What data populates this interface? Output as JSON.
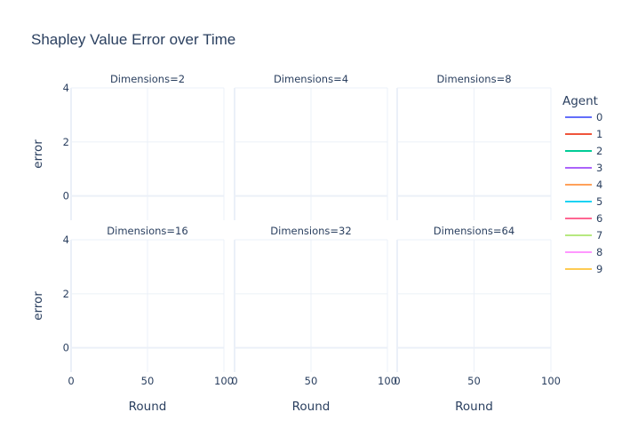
{
  "chart_data": {
    "type": "line",
    "title": "Shapley Value Error over Time",
    "xlabel": "Round",
    "ylabel": "error",
    "xlim": [
      0,
      100
    ],
    "ylim": [
      -0.9,
      4
    ],
    "xticks": [
      0,
      50,
      100
    ],
    "yticks": [
      0,
      2,
      4
    ],
    "grid": true,
    "legend_title": "Agent",
    "legend_position": "right",
    "panels": [
      "Dimensions=2",
      "Dimensions=4",
      "Dimensions=8",
      "Dimensions=16",
      "Dimensions=32",
      "Dimensions=64"
    ],
    "series": [
      {
        "name": "0",
        "color": "#636efa"
      },
      {
        "name": "1",
        "color": "#EF553B"
      },
      {
        "name": "2",
        "color": "#00cc96"
      },
      {
        "name": "3",
        "color": "#ab63fa"
      },
      {
        "name": "4",
        "color": "#FFA15A"
      },
      {
        "name": "5",
        "color": "#19d3f3"
      },
      {
        "name": "6",
        "color": "#FF6692"
      },
      {
        "name": "7",
        "color": "#B6E880"
      },
      {
        "name": "8",
        "color": "#FF97FF"
      },
      {
        "name": "9",
        "color": "#FECB52"
      }
    ]
  }
}
